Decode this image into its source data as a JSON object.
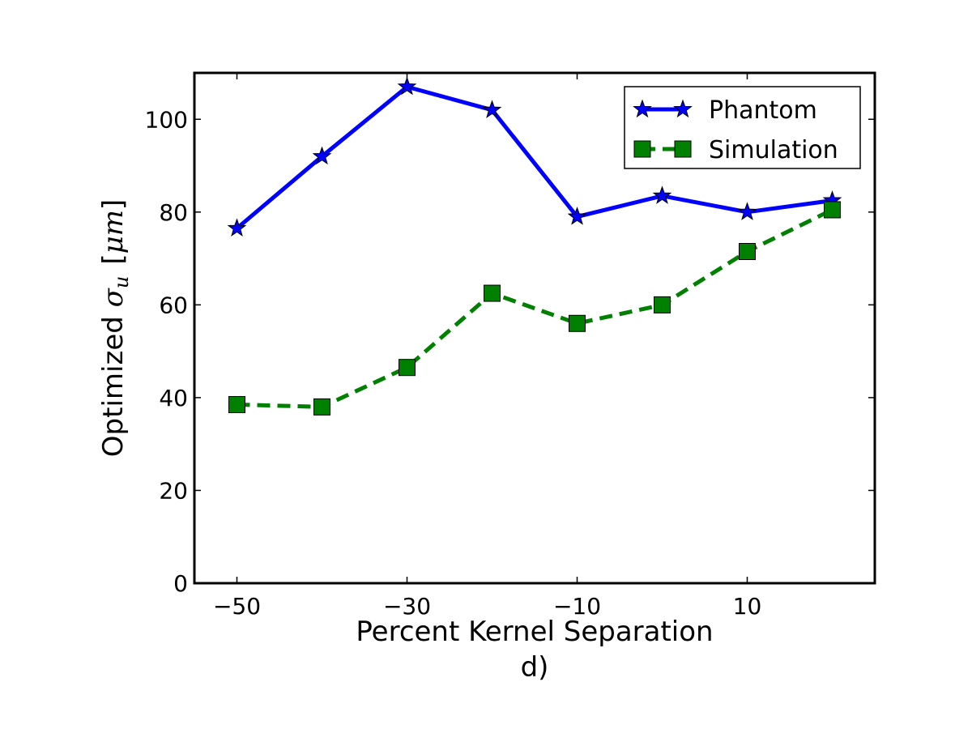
{
  "chart_data": {
    "type": "line",
    "xlabel": "Percent Kernel Separation",
    "sublabel": "d)",
    "ylabel": {
      "prefix": "Optimized ",
      "symbol": "σ",
      "subscript": "u",
      "units_open": "[",
      "units": "μm",
      "units_close": "]"
    },
    "xlim": [
      -55,
      25
    ],
    "ylim": [
      0,
      110
    ],
    "x_ticks": [
      -50,
      -30,
      -10,
      10
    ],
    "x_tick_labels": [
      "−50",
      "−30",
      "−10",
      "10"
    ],
    "y_ticks": [
      0,
      20,
      40,
      60,
      80,
      100
    ],
    "y_tick_labels": [
      "0",
      "20",
      "40",
      "60",
      "80",
      "100"
    ],
    "x": [
      -50,
      -40,
      -30,
      -20,
      -10,
      0,
      10,
      20
    ],
    "series": [
      {
        "name": "Phantom",
        "values": [
          76.5,
          92,
          107,
          102,
          79,
          83.5,
          80,
          82.5
        ],
        "color": "#0000ff",
        "line_style": "solid",
        "marker": "star"
      },
      {
        "name": "Simulation",
        "values": [
          38.5,
          38,
          46.5,
          62.5,
          56,
          60,
          71.5,
          80.5
        ],
        "color": "#008000",
        "line_style": "dashed",
        "marker": "square"
      }
    ],
    "legend_position": "top-right",
    "grid": false
  }
}
